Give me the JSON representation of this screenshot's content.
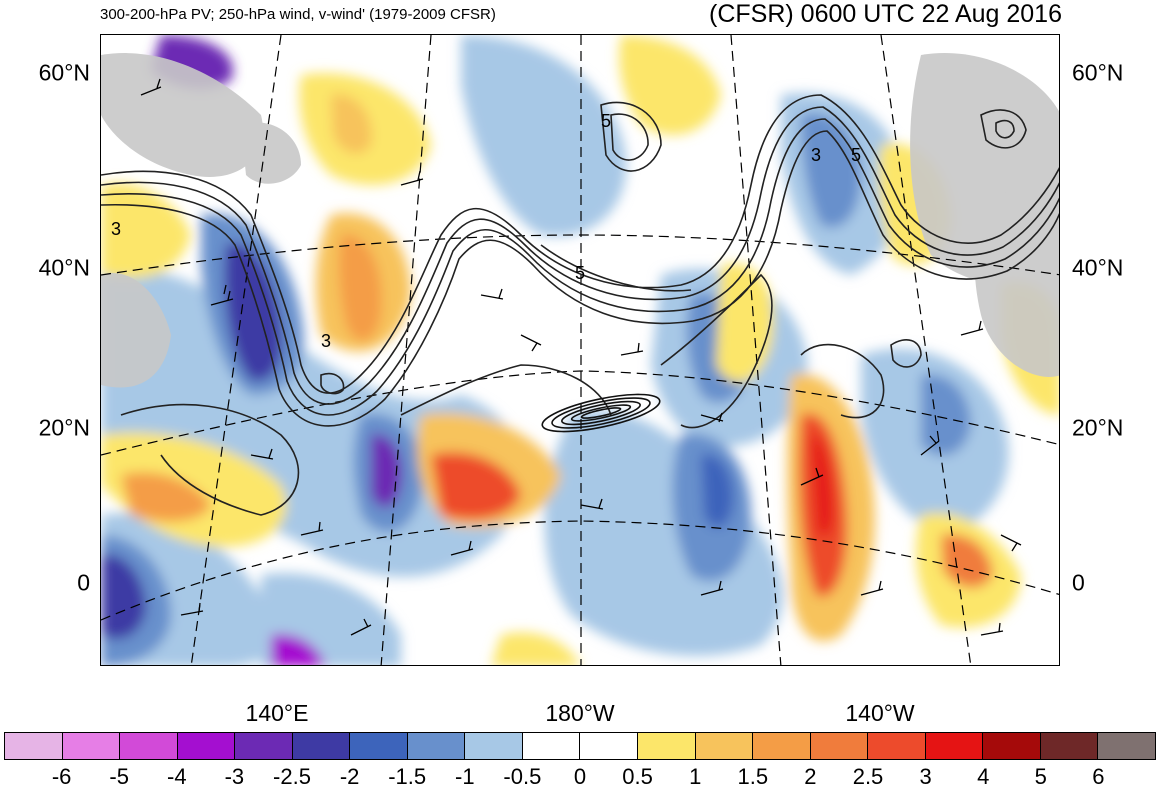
{
  "title": {
    "left": "300-200-hPa PV; 250-hPa wind, v-wind' (1979-2009 CFSR)",
    "right": "(CFSR) 0600 UTC 22 Aug 2016"
  },
  "lat_labels": [
    "60°N",
    "40°N",
    "20°N",
    "0"
  ],
  "lon_labels": [
    "140°E",
    "180°W",
    "140°W"
  ],
  "contour_labels": [
    "5",
    "3",
    "5",
    "5",
    "3",
    "3"
  ],
  "colorbar": {
    "colors": [
      "#e6b4e6",
      "#e67ee6",
      "#d24ad8",
      "#a40fd0",
      "#6c2ab4",
      "#3e3aa4",
      "#3d64bb",
      "#6890cc",
      "#a7c8e6",
      "#ffffff",
      "#ffffff",
      "#fce66a",
      "#f7c35c",
      "#f49d46",
      "#f07c3c",
      "#ed4b2c",
      "#e51414",
      "#a50a0a",
      "#6e2828",
      "#7f7170"
    ],
    "labels": [
      "-6",
      "-5",
      "-4",
      "-3",
      "-2.5",
      "-2",
      "-1.5",
      "-1",
      "-0.5",
      "0",
      "0.5",
      "1",
      "1.5",
      "2",
      "2.5",
      "3",
      "4",
      "5",
      "6"
    ]
  }
}
